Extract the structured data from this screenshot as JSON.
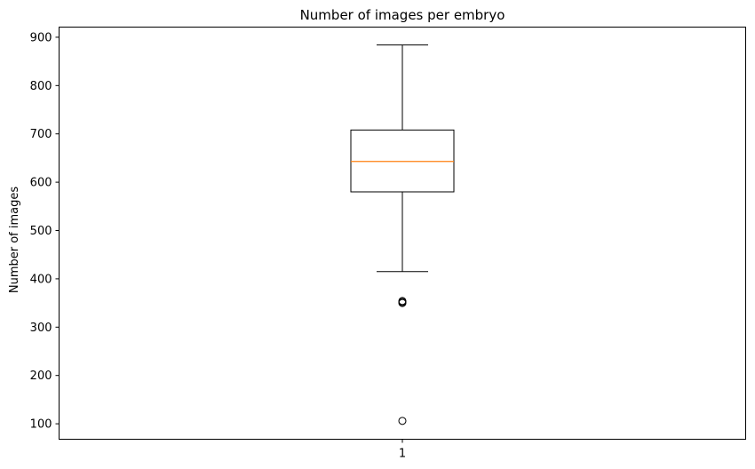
{
  "chart_data": {
    "type": "box",
    "title": "Number of images per embryo",
    "xlabel": "",
    "ylabel": "Number of images",
    "categories": [
      "1"
    ],
    "ylim": [
      68,
      921
    ],
    "yticks": [
      100,
      200,
      300,
      400,
      500,
      600,
      700,
      800,
      900
    ],
    "grid": false,
    "box": {
      "whisker_low": 415,
      "q1": 580,
      "median": 643,
      "q3": 708,
      "whisker_high": 884,
      "outliers": [
        106,
        350,
        352,
        354
      ]
    },
    "colors": {
      "box": "#000000",
      "median": "#ff7f0e",
      "axes": "#000000"
    }
  }
}
